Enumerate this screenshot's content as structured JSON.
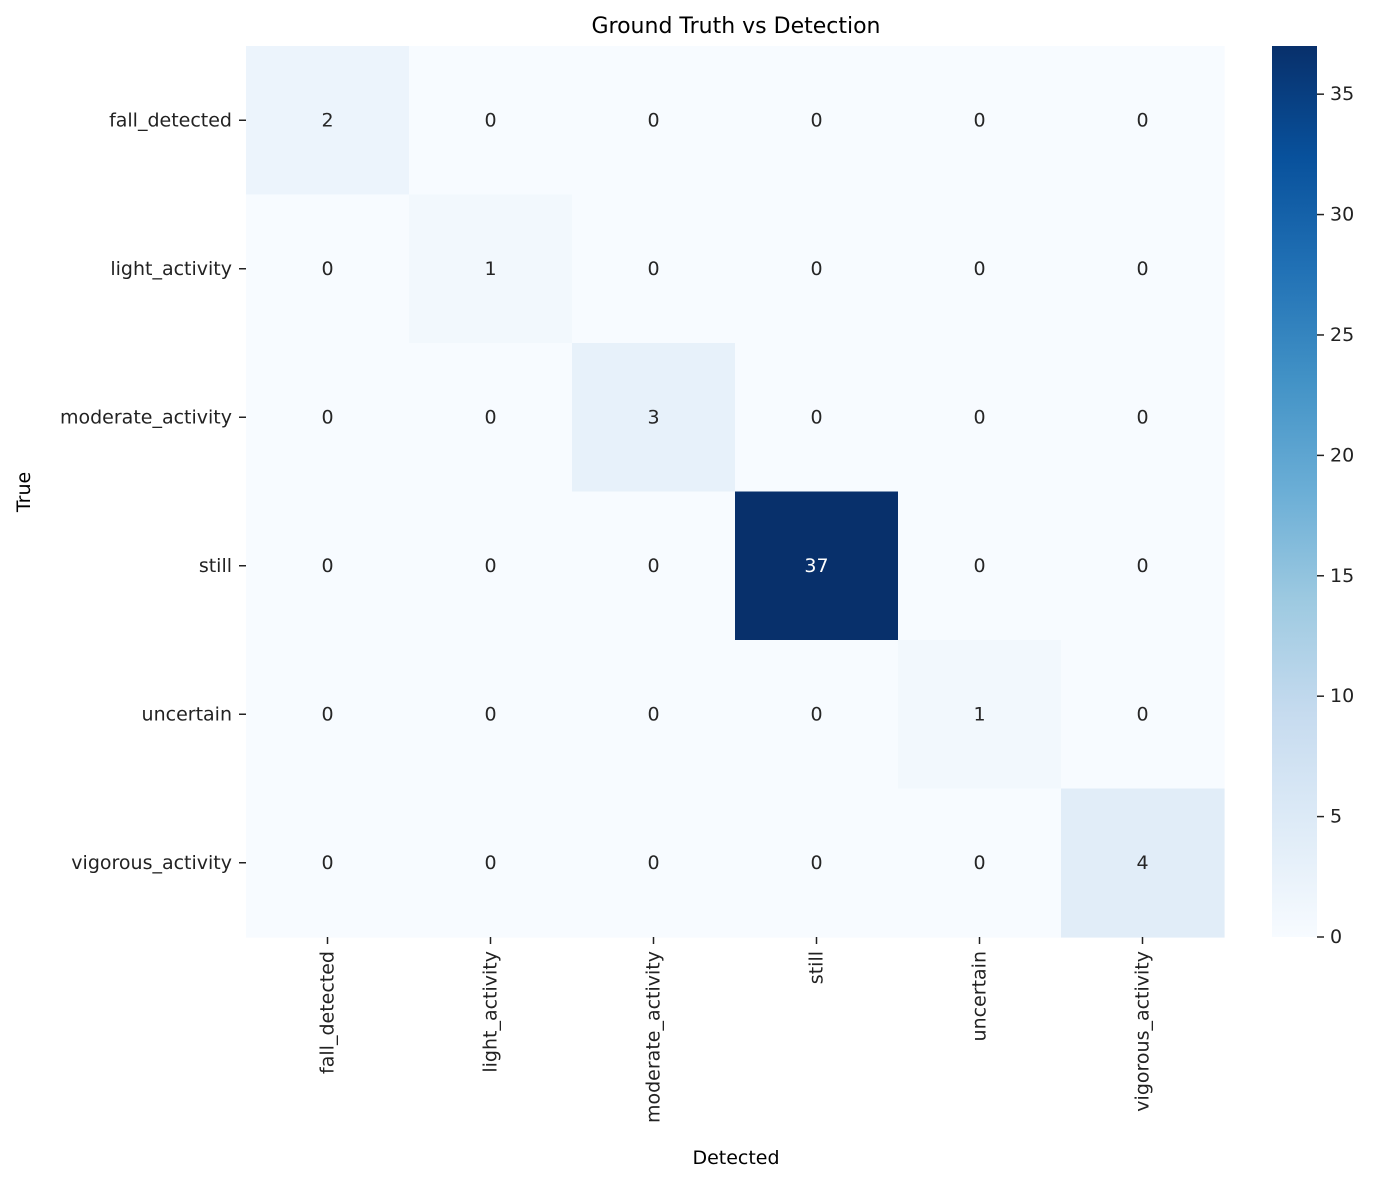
{
  "chart_data": {
    "type": "heatmap",
    "title": "Ground Truth vs Detection",
    "xlabel": "Detected",
    "ylabel": "True",
    "x_categories": [
      "fall_detected",
      "light_activity",
      "moderate_activity",
      "still",
      "uncertain",
      "vigorous_activity"
    ],
    "y_categories": [
      "fall_detected",
      "light_activity",
      "moderate_activity",
      "still",
      "uncertain",
      "vigorous_activity"
    ],
    "values": [
      [
        2,
        0,
        0,
        0,
        0,
        0
      ],
      [
        0,
        1,
        0,
        0,
        0,
        0
      ],
      [
        0,
        0,
        3,
        0,
        0,
        0
      ],
      [
        0,
        0,
        0,
        37,
        0,
        0
      ],
      [
        0,
        0,
        0,
        0,
        1,
        0
      ],
      [
        0,
        0,
        0,
        0,
        0,
        4
      ]
    ],
    "colorscale": "Blues",
    "colorbar": {
      "range": [
        0,
        37
      ],
      "ticks": [
        0,
        5,
        10,
        15,
        20,
        25,
        30,
        35
      ]
    },
    "annotations": true
  }
}
